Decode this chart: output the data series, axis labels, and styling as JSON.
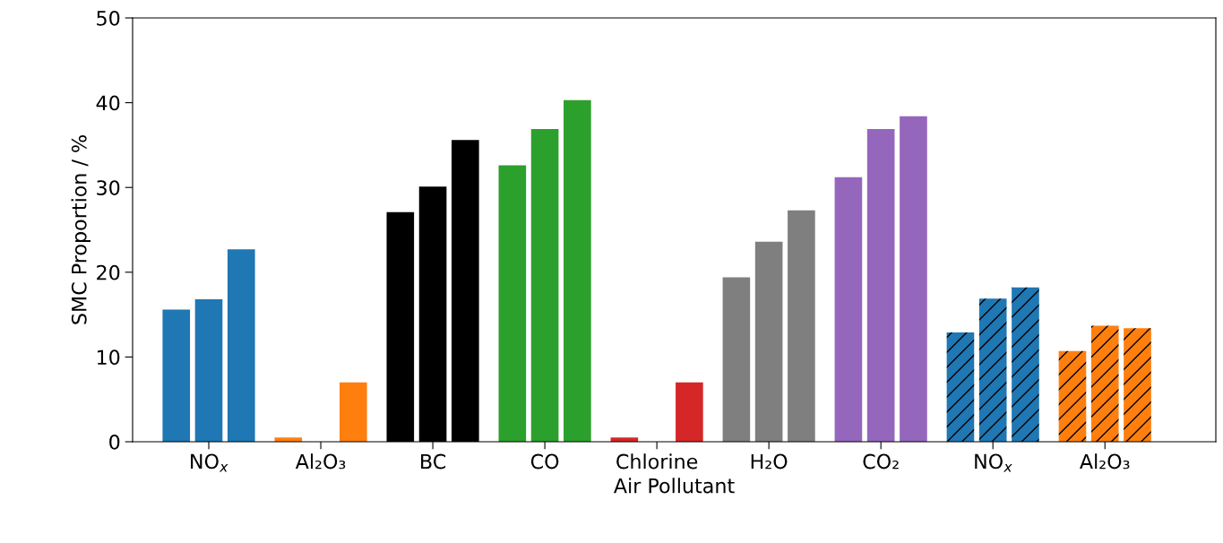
{
  "chart_data": {
    "type": "bar",
    "xlabel": "Air Pollutant",
    "ylabel": "SMC Proportion / %",
    "categories": [
      "NO$_{x}$",
      "Al₂O₃",
      "BC",
      "CO",
      "Chlorine",
      "H₂O",
      "CO₂",
      "NO$_{x}$",
      "Al₂O₃"
    ],
    "series": [
      {
        "colors": [
          "#1f77b4",
          "#ff7f0e",
          "#000000",
          "#2ca02c",
          "#d62728",
          "#7f7f7f",
          "#9467bd",
          "#1f77b4",
          "#ff7f0e"
        ],
        "values": [
          15.6,
          0.5,
          27.1,
          32.6,
          0.5,
          19.4,
          31.2,
          12.9,
          10.7
        ]
      },
      {
        "colors": [
          "#1f77b4",
          "#ff7f0e",
          "#000000",
          "#2ca02c",
          "#d62728",
          "#7f7f7f",
          "#9467bd",
          "#1f77b4",
          "#ff7f0e"
        ],
        "values": [
          16.8,
          0,
          30.1,
          36.9,
          0,
          23.6,
          36.9,
          16.9,
          13.7
        ]
      },
      {
        "colors": [
          "#1f77b4",
          "#ff7f0e",
          "#000000",
          "#2ca02c",
          "#d62728",
          "#7f7f7f",
          "#9467bd",
          "#1f77b4",
          "#ff7f0e"
        ],
        "values": [
          22.7,
          7.0,
          35.6,
          40.3,
          7.0,
          27.3,
          38.4,
          18.2,
          13.4
        ]
      }
    ],
    "ylim": [
      0,
      50
    ],
    "yticks": [
      0,
      10,
      20,
      30,
      40,
      50
    ],
    "grid": false,
    "legend": false
  }
}
